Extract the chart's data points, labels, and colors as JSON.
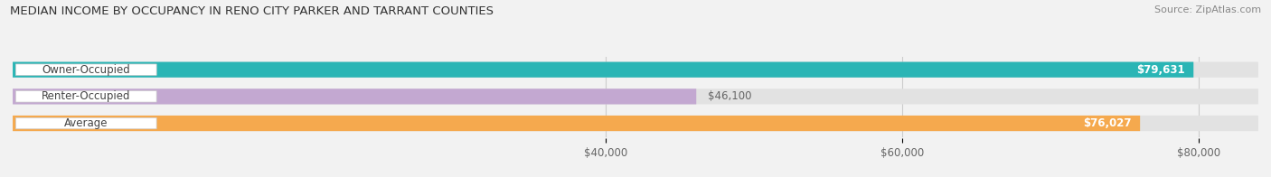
{
  "title": "MEDIAN INCOME BY OCCUPANCY IN RENO CITY PARKER AND TARRANT COUNTIES",
  "source": "Source: ZipAtlas.com",
  "categories": [
    "Owner-Occupied",
    "Renter-Occupied",
    "Average"
  ],
  "values": [
    79631,
    46100,
    76027
  ],
  "bar_colors": [
    "#2ab5b5",
    "#c3a8d1",
    "#f5a94e"
  ],
  "value_labels": [
    "$79,631",
    "$46,100",
    "$76,027"
  ],
  "label_inside_bar": [
    true,
    false,
    true
  ],
  "value_color_inside": [
    "#ffffff",
    "#666666",
    "#ffffff"
  ],
  "xlim_min": 0,
  "xlim_max": 84000,
  "xticks": [
    40000,
    60000,
    80000
  ],
  "xtick_labels": [
    "$40,000",
    "$60,000",
    "$80,000"
  ],
  "background_color": "#f2f2f2",
  "bar_bg_color": "#e2e2e2",
  "title_fontsize": 9.5,
  "source_fontsize": 8,
  "label_fontsize": 8.5,
  "value_fontsize": 8.5,
  "tick_fontsize": 8.5,
  "cat_label_color": "#444444",
  "grid_color": "#cccccc"
}
